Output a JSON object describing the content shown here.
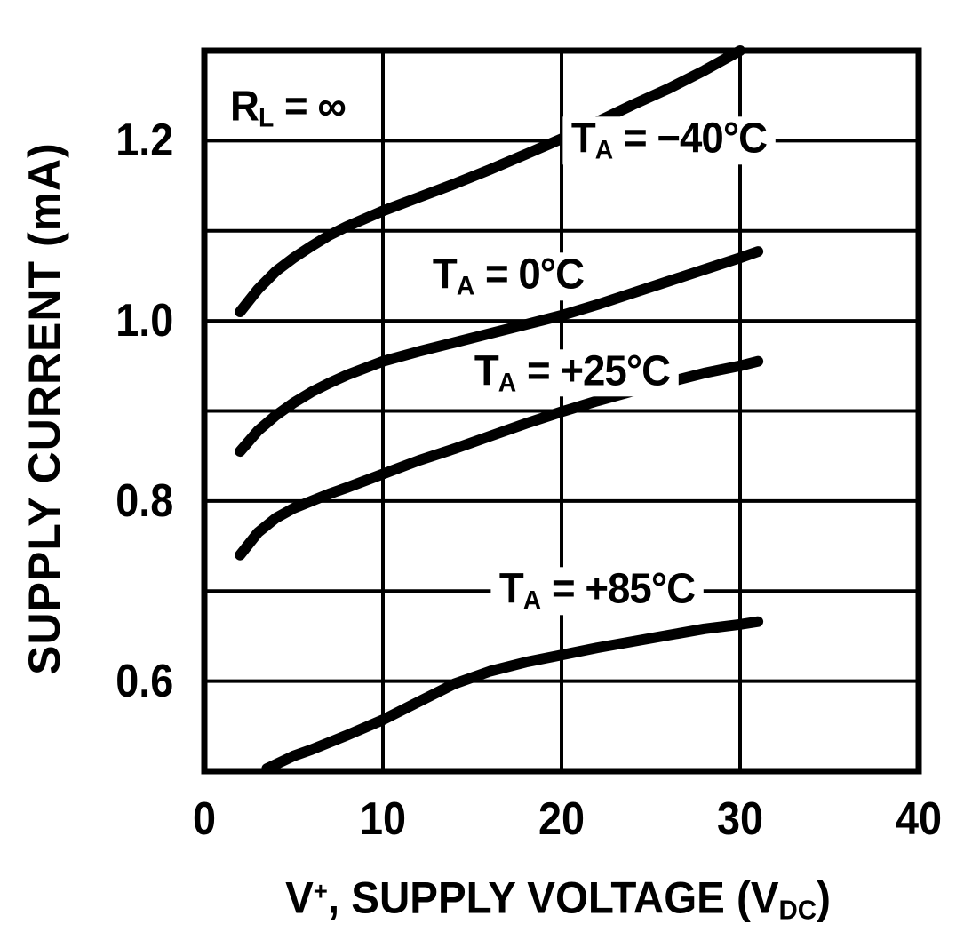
{
  "chart_data": {
    "type": "line",
    "ylabel": "SUPPLY CURRENT (mA)",
    "xlabel_parts": {
      "pre": "V",
      "sup": "+",
      "mid": ", SUPPLY VOLTAGE (V",
      "sub": "DC",
      "post": ")"
    },
    "xlim": [
      0,
      40
    ],
    "ylim": [
      0.5,
      1.3
    ],
    "x_tick_values": [
      0,
      10,
      20,
      30,
      40
    ],
    "x_tick_labels": [
      "0",
      "10",
      "20",
      "30",
      "40"
    ],
    "y_tick_values": [
      0.6,
      0.8,
      1.0,
      1.2
    ],
    "y_tick_labels": [
      "0.6",
      "0.8",
      "1.0",
      "1.2"
    ],
    "x_grid_step": 10,
    "y_grid_step": 0.1,
    "grid": true,
    "legend_position": "inline-labels",
    "ink_color": "#000000",
    "background_color": "#ffffff",
    "annotation": {
      "main": "R",
      "sub": "L",
      "rest": " = ∞",
      "x": 4.7,
      "y": 1.236
    },
    "series": [
      {
        "name": "TA_-40C",
        "label": {
          "main": "T",
          "sub": "A",
          "rest": " = −40°C"
        },
        "label_x": 26,
        "label_y": 1.2,
        "points": [
          [
            2,
            1.01
          ],
          [
            3,
            1.035
          ],
          [
            4,
            1.055
          ],
          [
            5,
            1.07
          ],
          [
            6,
            1.083
          ],
          [
            7,
            1.095
          ],
          [
            8,
            1.105
          ],
          [
            10,
            1.122
          ],
          [
            12,
            1.137
          ],
          [
            14,
            1.152
          ],
          [
            16,
            1.168
          ],
          [
            18,
            1.185
          ],
          [
            20,
            1.202
          ],
          [
            22,
            1.221
          ],
          [
            24,
            1.24
          ],
          [
            26,
            1.258
          ],
          [
            28,
            1.278
          ],
          [
            30,
            1.3
          ]
        ]
      },
      {
        "name": "TA_0C",
        "label": {
          "main": "T",
          "sub": "A",
          "rest": " = 0°C"
        },
        "label_x": 17,
        "label_y": 1.049,
        "points": [
          [
            2,
            0.855
          ],
          [
            3,
            0.878
          ],
          [
            4,
            0.895
          ],
          [
            5,
            0.909
          ],
          [
            6,
            0.921
          ],
          [
            7,
            0.931
          ],
          [
            8,
            0.94
          ],
          [
            10,
            0.955
          ],
          [
            12,
            0.966
          ],
          [
            14,
            0.976
          ],
          [
            16,
            0.986
          ],
          [
            18,
            0.996
          ],
          [
            20,
            1.006
          ],
          [
            22,
            1.018
          ],
          [
            24,
            1.031
          ],
          [
            26,
            1.044
          ],
          [
            28,
            1.057
          ],
          [
            30,
            1.07
          ],
          [
            31,
            1.077
          ]
        ]
      },
      {
        "name": "TA_+25C",
        "label": {
          "main": "T",
          "sub": "A",
          "rest": " = +25°C"
        },
        "label_x": 20.6,
        "label_y": 0.942,
        "points": [
          [
            2,
            0.74
          ],
          [
            3,
            0.765
          ],
          [
            4,
            0.781
          ],
          [
            5,
            0.792
          ],
          [
            6,
            0.8
          ],
          [
            7,
            0.808
          ],
          [
            8,
            0.815
          ],
          [
            10,
            0.83
          ],
          [
            12,
            0.845
          ],
          [
            14,
            0.858
          ],
          [
            16,
            0.872
          ],
          [
            18,
            0.886
          ],
          [
            20,
            0.899
          ],
          [
            22,
            0.911
          ],
          [
            24,
            0.922
          ],
          [
            26,
            0.932
          ],
          [
            28,
            0.942
          ],
          [
            30,
            0.95
          ],
          [
            31,
            0.955
          ]
        ]
      },
      {
        "name": "TA_+85C",
        "label": {
          "main": "T",
          "sub": "A",
          "rest": " = +85°C"
        },
        "label_x": 22,
        "label_y": 0.7,
        "points": [
          [
            3.5,
            0.503
          ],
          [
            5,
            0.517
          ],
          [
            6,
            0.524
          ],
          [
            7,
            0.532
          ],
          [
            8,
            0.54
          ],
          [
            10,
            0.557
          ],
          [
            12,
            0.577
          ],
          [
            14,
            0.597
          ],
          [
            16,
            0.611
          ],
          [
            18,
            0.621
          ],
          [
            20,
            0.629
          ],
          [
            22,
            0.637
          ],
          [
            24,
            0.644
          ],
          [
            26,
            0.651
          ],
          [
            28,
            0.658
          ],
          [
            30,
            0.663
          ],
          [
            31,
            0.666
          ]
        ]
      }
    ]
  }
}
